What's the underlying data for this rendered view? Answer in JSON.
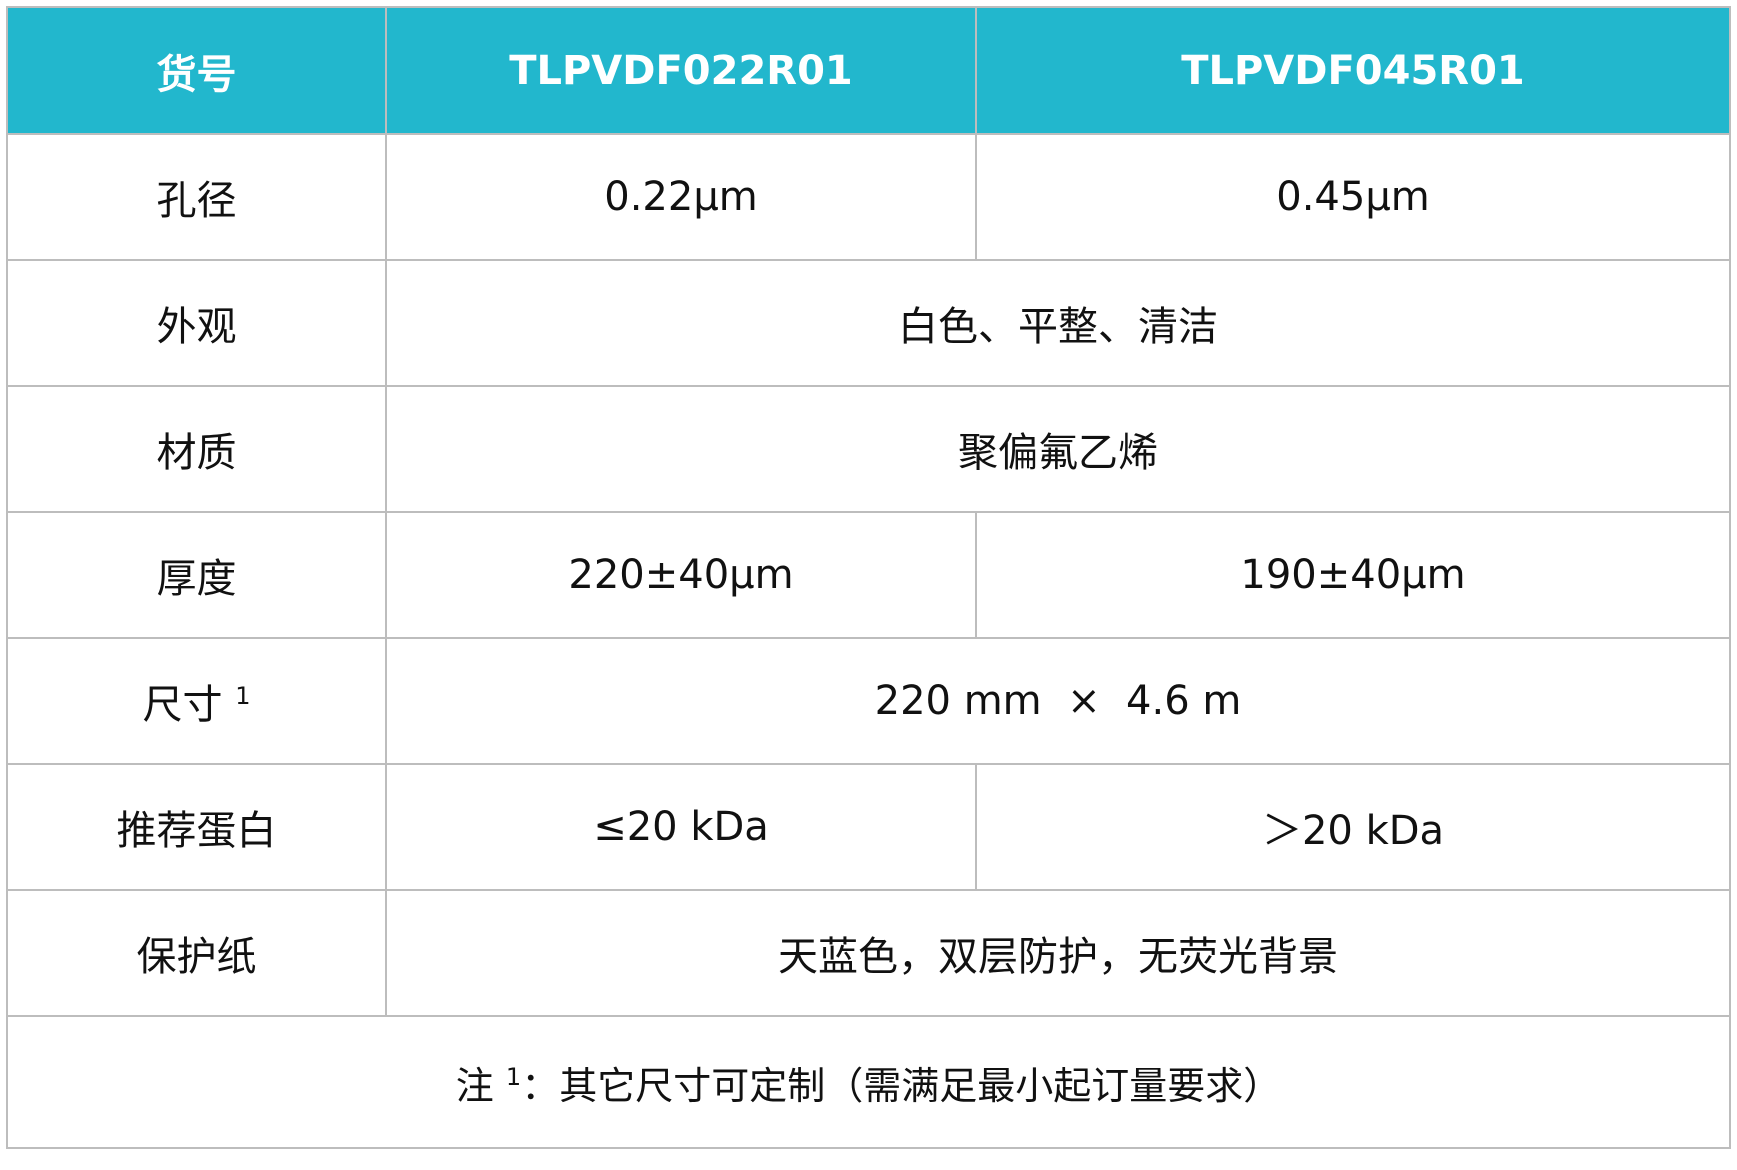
{
  "header": {
    "label": "货号",
    "products": [
      "TLPVDF022R01",
      "TLPVDF045R01"
    ]
  },
  "rows": [
    {
      "label": "孔径",
      "values": [
        "0.22μm",
        "0.45μm"
      ]
    },
    {
      "label": "外观",
      "value": "白色、平整、清洁"
    },
    {
      "label": "材质",
      "value": "聚偏氟乙烯"
    },
    {
      "label": "厚度",
      "values": [
        "220±40μm",
        "190±40μm"
      ]
    },
    {
      "label": "尺寸",
      "sup": "1",
      "value": "220 mm  ×  4.6 m"
    },
    {
      "label": "推荐蛋白",
      "values": [
        "≤20 kDa",
        "＞20 kDa"
      ]
    },
    {
      "label": "保护纸",
      "value": "天蓝色，双层防护，无荧光背景"
    }
  ],
  "note": {
    "prefix": "注",
    "sup": "1",
    "text": "：其它尺寸可定制（需满足最小起订量要求）"
  },
  "colors": {
    "header_bg": "#22b7cd",
    "header_text": "#ffffff",
    "border": "#bdbdbd"
  }
}
